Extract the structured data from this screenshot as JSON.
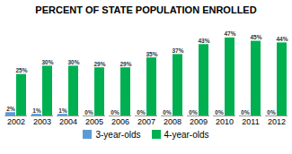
{
  "chart_data": {
    "type": "bar",
    "title": "PERCENT OF STATE POPULATION ENROLLED",
    "categories": [
      "2002",
      "2003",
      "2004",
      "2005",
      "2006",
      "2007",
      "2008",
      "2009",
      "2010",
      "2011",
      "2012"
    ],
    "series": [
      {
        "name": "3-year-olds",
        "color": "#5b9bd5",
        "values": [
          2,
          1,
          1,
          0,
          0,
          0,
          0,
          0,
          0,
          0,
          0
        ],
        "value_labels": [
          "2%",
          "1%",
          "1%",
          "0%",
          "0%",
          "0%",
          "0%",
          "0%",
          "0%",
          "0%",
          "0%"
        ]
      },
      {
        "name": "4-year-olds",
        "color": "#00b050",
        "values": [
          25,
          30,
          30,
          29,
          29,
          35,
          37,
          43,
          47,
          45,
          44
        ],
        "value_labels": [
          "25%",
          "30%",
          "30%",
          "29%",
          "29%",
          "35%",
          "37%",
          "43%",
          "47%",
          "45%",
          "44%"
        ]
      }
    ],
    "ylim": [
      0,
      55
    ],
    "grid": false,
    "legend": "bottom",
    "data_labels": true,
    "tick_labels": "x"
  }
}
